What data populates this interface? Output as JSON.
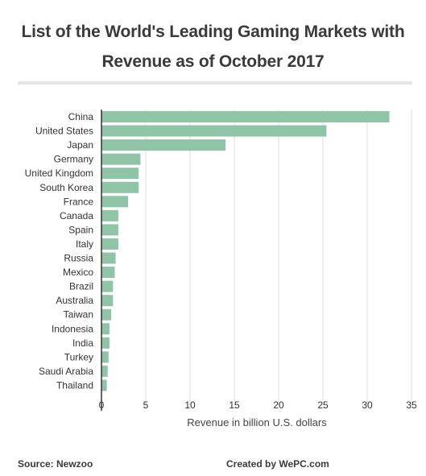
{
  "title_line1": "List of the World's Leading Gaming Markets with",
  "title_line2": "Revenue as of October 2017",
  "footer": {
    "source": "Source: Newzoo",
    "credit": "Created by WePC.com"
  },
  "colors": {
    "bar": "#8fc4a6",
    "grid": "#dddddd",
    "axis": "#333333"
  },
  "chart_data": {
    "type": "bar",
    "orientation": "horizontal",
    "title": "List of the World's Leading Gaming Markets with Revenue as of October 2017",
    "xlabel": "Revenue in billion U.S. dollars",
    "ylabel": "",
    "xlim": [
      0,
      35
    ],
    "xticks": [
      0,
      5,
      10,
      15,
      20,
      25,
      30,
      35
    ],
    "grid": true,
    "categories": [
      "China",
      "United States",
      "Japan",
      "Germany",
      "United Kingdom",
      "South Korea",
      "France",
      "Canada",
      "Spain",
      "Italy",
      "Russia",
      "Mexico",
      "Brazil",
      "Australia",
      "Taiwan",
      "Indonesia",
      "India",
      "Turkey",
      "Saudi Arabia",
      "Thailand"
    ],
    "values": [
      32.5,
      25.4,
      14.0,
      4.4,
      4.2,
      4.2,
      3.0,
      1.9,
      1.9,
      1.9,
      1.6,
      1.5,
      1.3,
      1.3,
      1.1,
      0.9,
      0.9,
      0.8,
      0.7,
      0.6
    ]
  }
}
